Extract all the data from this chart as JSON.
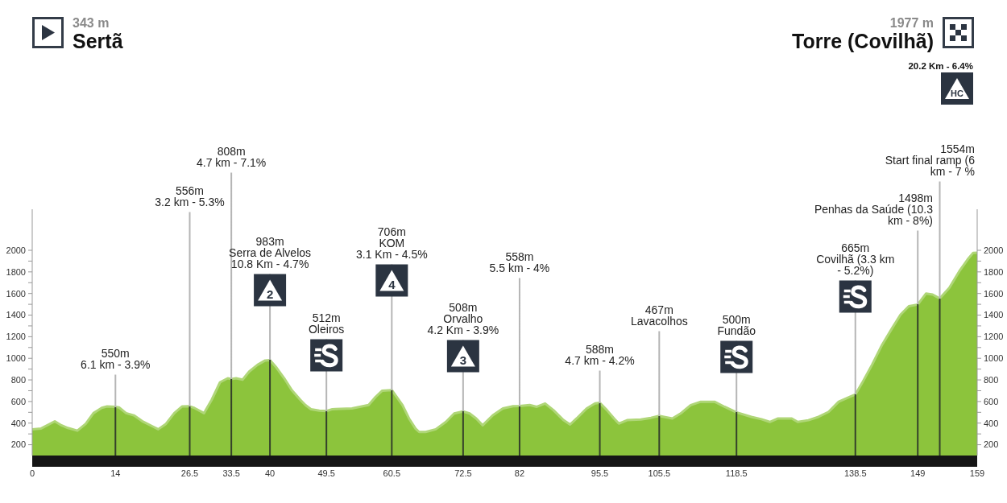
{
  "chart_data": {
    "type": "area",
    "color": "#8cc43c",
    "x": [
      0,
      1.5,
      3.8,
      4.9,
      6,
      7.6,
      9,
      10.3,
      11.7,
      12.6,
      14,
      14.6,
      15.8,
      17.1,
      18.5,
      20.3,
      21.2,
      22.5,
      23.9,
      25.2,
      26.5,
      27.3,
      28.9,
      30.2,
      31.6,
      32.9,
      33.5,
      34.3,
      35.4,
      36.5,
      37.9,
      39.2,
      40,
      41.1,
      42.4,
      43.7,
      45.1,
      46,
      46.9,
      48.3,
      49.5,
      50.5,
      51,
      53.8,
      56.6,
      57.8,
      58.9,
      60.5,
      62.3,
      63.4,
      64.5,
      65.1,
      66.2,
      67.9,
      69.6,
      71,
      72.5,
      73.6,
      74.7,
      75.8,
      77.5,
      79.2,
      80.9,
      82,
      83.7,
      84.9,
      86.3,
      87.7,
      89.4,
      90.5,
      91.6,
      93.3,
      94.7,
      95.5,
      96.7,
      97.9,
      98.7,
      100.1,
      102.4,
      104.1,
      105.5,
      106.3,
      107.7,
      109.1,
      110.8,
      112.5,
      114.8,
      116.5,
      118.5,
      121,
      122.7,
      124.1,
      125.5,
      127.8,
      128.8,
      130.6,
      132.3,
      134,
      135.7,
      137.4,
      138.5,
      139.6,
      141.3,
      143,
      144.7,
      146.1,
      147.5,
      149,
      150.4,
      151.5,
      152.7,
      154.3,
      156,
      157.4,
      158.3,
      159
    ],
    "values": [
      343,
      350,
      417,
      380,
      355,
      330,
      393,
      492,
      541,
      554,
      550,
      545,
      492,
      472,
      418,
      368,
      343,
      393,
      492,
      554,
      556,
      540,
      492,
      616,
      778,
      815,
      808,
      815,
      802,
      877,
      939,
      980,
      983,
      914,
      815,
      703,
      616,
      566,
      529,
      516,
      512,
      529,
      530,
      536,
      567,
      644,
      700,
      706,
      567,
      443,
      349,
      318,
      318,
      343,
      411,
      489,
      508,
      489,
      443,
      380,
      473,
      536,
      557,
      558,
      567,
      551,
      582,
      520,
      427,
      387,
      443,
      536,
      582,
      588,
      520,
      443,
      396,
      427,
      433,
      449,
      467,
      458,
      443,
      489,
      567,
      598,
      598,
      551,
      500,
      458,
      436,
      411,
      443,
      443,
      411,
      427,
      458,
      504,
      598,
      640,
      665,
      768,
      939,
      1125,
      1280,
      1404,
      1482,
      1498,
      1600,
      1590,
      1554,
      1652,
      1807,
      1916,
      1975,
      1977
    ],
    "xlim": [
      0,
      159
    ],
    "xticks": [
      0,
      14,
      26.5,
      33.5,
      40,
      49.5,
      60.5,
      72.5,
      82,
      95.5,
      105.5,
      118.5,
      138.5,
      149,
      159
    ],
    "ylim": [
      100,
      2380
    ],
    "yticks": [
      200,
      {
        "value": 300,
        "label": null
      },
      400,
      {
        "value": 500,
        "label": null
      },
      600,
      {
        "value": 700,
        "label": null
      },
      800,
      {
        "value": 900,
        "label": null
      },
      1000,
      {
        "value": 1100,
        "label": null
      },
      1200,
      {
        "value": 1300,
        "label": null
      },
      1400,
      {
        "value": 1500,
        "label": null
      },
      1600,
      {
        "value": 1700,
        "label": null
      },
      1800,
      {
        "value": 1900,
        "label": null
      },
      2000
    ],
    "y2lim": [
      100,
      2380
    ],
    "y2ticks": [
      200,
      {
        "value": 300,
        "label": null
      },
      400,
      {
        "value": 500,
        "label": null
      },
      600,
      {
        "value": 700,
        "label": null
      },
      800,
      {
        "value": 900,
        "label": null
      },
      1000,
      {
        "value": 1100,
        "label": null
      },
      1200,
      {
        "value": 1300,
        "label": null
      },
      1400,
      {
        "value": 1500,
        "label": null
      },
      1600,
      {
        "value": 1700,
        "label": null
      },
      1800,
      {
        "value": 1900,
        "label": null
      },
      2000
    ],
    "ref_lines": [
      {
        "axis": "x",
        "value": 14,
        "label": "550m\n6.1 km - 3.9%"
      },
      {
        "axis": "x",
        "value": 26.5,
        "label": "556m\n3.2 km - 5.3%"
      },
      {
        "axis": "x",
        "value": 33.5,
        "label": "808m\n4.7 km - 7.1%"
      },
      {
        "axis": "x",
        "value": 40,
        "label": "983m\nSerra de Alvelos\n10.8 Km - 4.7%"
      },
      {
        "axis": "x",
        "value": 49.5,
        "label": "512m\nOleiros"
      },
      {
        "axis": "x",
        "value": 60.5,
        "label": "706m\nKOM\n3.1 Km - 4.5%"
      },
      {
        "axis": "x",
        "value": 72.5,
        "label": "508m\nOrvalho\n4.2 Km - 3.9%"
      },
      {
        "axis": "x",
        "value": 82,
        "label": "558m\n5.5 km - 4%"
      },
      {
        "axis": "x",
        "value": 95.5,
        "label": "588m\n4.7 km - 4.2%"
      },
      {
        "axis": "x",
        "value": 105.5,
        "label": "467m\nLavacolhos"
      },
      {
        "axis": "x",
        "value": 118.5,
        "label": "500m\nFundão"
      },
      {
        "axis": "x",
        "value": 138.5,
        "label": "665m\nCovilhã (3.3 km\n- 5.2%)"
      },
      {
        "axis": "x",
        "value": 149,
        "label": "1498m\nPenhas da Saúde (10.3\nkm - 8%)"
      },
      {
        "axis": "x",
        "value": 152.7,
        "label": "1554m\nStart final ramp (6\nkm - 7 %"
      }
    ],
    "annotations": [
      "343 m\nSertã",
      "1977 m\nTorre (Covilhã)",
      "20.2 Km - 6.4%",
      "HC",
      "2",
      "4",
      "3"
    ]
  }
}
